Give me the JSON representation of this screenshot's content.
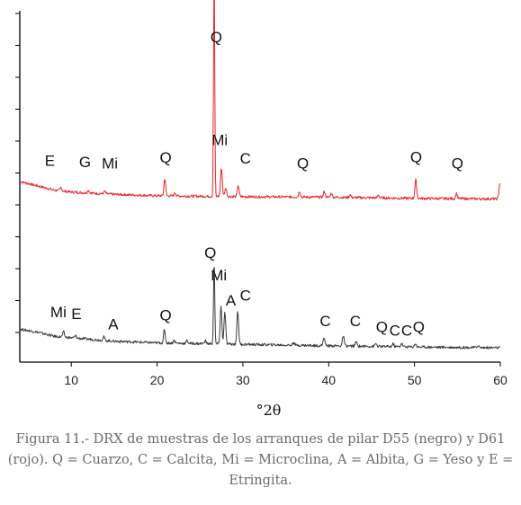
{
  "chart_data": {
    "type": "line",
    "xlabel": "°2θ",
    "xlim": [
      4,
      60
    ],
    "x_ticks": [
      10,
      20,
      30,
      40,
      50,
      60
    ],
    "y_ticks_count": 11,
    "y_tick_labels": false,
    "grid": false,
    "legend": "none",
    "series": [
      {
        "key": "d61",
        "color": "#e8262c",
        "offset": 0.52,
        "baseline": [
          [
            4,
            0.065
          ],
          [
            6,
            0.05
          ],
          [
            8,
            0.035
          ],
          [
            10,
            0.028
          ],
          [
            15,
            0.02
          ],
          [
            20,
            0.015
          ],
          [
            30,
            0.012
          ],
          [
            40,
            0.01
          ],
          [
            50,
            0.006
          ],
          [
            60,
            0.004
          ]
        ],
        "peaks": [
          {
            "x": 8.8,
            "h": 0.012
          },
          {
            "x": 12.0,
            "h": 0.01
          },
          {
            "x": 13.9,
            "h": 0.008
          },
          {
            "x": 20.9,
            "h": 0.06
          },
          {
            "x": 22.1,
            "h": 0.012
          },
          {
            "x": 26.65,
            "h": 0.78
          },
          {
            "x": 27.5,
            "h": 0.1
          },
          {
            "x": 28.0,
            "h": 0.03
          },
          {
            "x": 29.45,
            "h": 0.04
          },
          {
            "x": 36.6,
            "h": 0.02
          },
          {
            "x": 39.5,
            "h": 0.02
          },
          {
            "x": 40.3,
            "h": 0.015
          },
          {
            "x": 42.5,
            "h": 0.01
          },
          {
            "x": 45.8,
            "h": 0.01
          },
          {
            "x": 50.15,
            "h": 0.065
          },
          {
            "x": 54.9,
            "h": 0.018
          },
          {
            "x": 59.95,
            "h": 0.055
          }
        ],
        "annotations": [
          {
            "text": "E",
            "x": 7.5,
            "y": 0.64
          },
          {
            "text": "G",
            "x": 11.6,
            "y": 0.635
          },
          {
            "text": "Mi",
            "x": 14.5,
            "y": 0.63
          },
          {
            "text": "Q",
            "x": 21.0,
            "y": 0.65
          },
          {
            "text": "Mi",
            "x": 27.3,
            "y": 0.712
          },
          {
            "text": "C",
            "x": 30.3,
            "y": 0.647
          },
          {
            "text": "Q",
            "x": 37.0,
            "y": 0.63
          },
          {
            "text": "Q",
            "x": 50.2,
            "y": 0.652
          },
          {
            "text": "Q",
            "x": 55.0,
            "y": 0.63
          },
          {
            "text": "Q",
            "x": 26.9,
            "y": 1.07
          }
        ]
      },
      {
        "key": "d55",
        "color": "#3a3a3a",
        "offset": 0.0,
        "baseline": [
          [
            4,
            0.07
          ],
          [
            6,
            0.06
          ],
          [
            8,
            0.045
          ],
          [
            10,
            0.04
          ],
          [
            15,
            0.028
          ],
          [
            20,
            0.022
          ],
          [
            30,
            0.017
          ],
          [
            40,
            0.012
          ],
          [
            50,
            0.008
          ],
          [
            60,
            0.005
          ]
        ],
        "peaks": [
          {
            "x": 9.1,
            "h": 0.018
          },
          {
            "x": 10.5,
            "h": 0.008
          },
          {
            "x": 13.8,
            "h": 0.012
          },
          {
            "x": 20.85,
            "h": 0.045
          },
          {
            "x": 22.0,
            "h": 0.01
          },
          {
            "x": 23.5,
            "h": 0.01
          },
          {
            "x": 25.6,
            "h": 0.012
          },
          {
            "x": 26.65,
            "h": 0.29
          },
          {
            "x": 27.45,
            "h": 0.13
          },
          {
            "x": 27.9,
            "h": 0.11
          },
          {
            "x": 29.4,
            "h": 0.115
          },
          {
            "x": 35.9,
            "h": 0.01
          },
          {
            "x": 39.45,
            "h": 0.03
          },
          {
            "x": 41.7,
            "h": 0.035
          },
          {
            "x": 43.2,
            "h": 0.015
          },
          {
            "x": 45.5,
            "h": 0.01
          },
          {
            "x": 47.5,
            "h": 0.01
          },
          {
            "x": 48.5,
            "h": 0.012
          },
          {
            "x": 50.1,
            "h": 0.012
          },
          {
            "x": 57.4,
            "h": 0.008
          }
        ],
        "annotations": [
          {
            "text": "Mi",
            "x": 8.5,
            "y": 0.112
          },
          {
            "text": "E",
            "x": 10.6,
            "y": 0.105
          },
          {
            "text": "A",
            "x": 14.9,
            "y": 0.07
          },
          {
            "text": "Q",
            "x": 21.0,
            "y": 0.1
          },
          {
            "text": "Q",
            "x": 26.2,
            "y": 0.318
          },
          {
            "text": "Mi",
            "x": 27.2,
            "y": 0.24
          },
          {
            "text": "A",
            "x": 28.6,
            "y": 0.153
          },
          {
            "text": "C",
            "x": 30.3,
            "y": 0.17
          },
          {
            "text": "C",
            "x": 39.6,
            "y": 0.08
          },
          {
            "text": "C",
            "x": 43.1,
            "y": 0.08
          },
          {
            "text": "Q",
            "x": 46.2,
            "y": 0.06
          },
          {
            "text": "C",
            "x": 47.7,
            "y": 0.047
          },
          {
            "text": "C",
            "x": 49.1,
            "y": 0.047
          },
          {
            "text": "Q",
            "x": 50.5,
            "y": 0.06
          }
        ]
      }
    ]
  },
  "caption": "Figura 11.- DRX de muestras de los arranques de pilar D55 (negro) y D61 (rojo). Q = Cuarzo, C = Calcita, Mi = Microclina, A = Albita, G = Yeso y E = Etringita."
}
